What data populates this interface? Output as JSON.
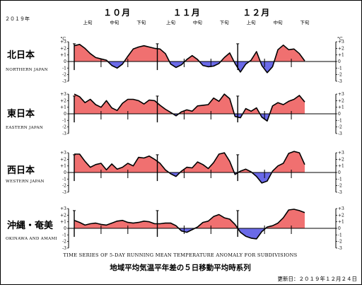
{
  "header": {
    "year": "２０１９年",
    "months": [
      "１０月",
      "１１月",
      "１２月"
    ],
    "dekads": [
      "上旬",
      "中旬",
      "下旬"
    ]
  },
  "footer": {
    "english_title": "TIME SERIES OF 5-DAY RUNNING MEAN TEMPERATURE ANOMALY FOR SUBDIVISIONS",
    "japanese_title": "地域平均気温平年差の５日移動平均時系列",
    "updated": "更新日：２０１９年１２月２４日"
  },
  "colors": {
    "positive": "#f07070",
    "negative": "#6a6ae8",
    "line": "#000000"
  },
  "chart_data": {
    "type": "area",
    "x_unit": "days since 2019-10-01",
    "xlim": [
      0,
      86
    ],
    "ylim": [
      -3,
      3
    ],
    "y_unit": "°C",
    "y_ticks": [
      "+3",
      "+2",
      "+1",
      "0",
      "-1",
      "-2",
      "-3"
    ],
    "month_boundaries": [
      0,
      31,
      61
    ],
    "dekad_starts": [
      0,
      10,
      20,
      31,
      41,
      51,
      61,
      71,
      81
    ],
    "series": [
      {
        "name_ja": "北日本",
        "name_en": "NORTHERN JAPAN",
        "x": [
          0,
          2,
          4,
          6,
          8,
          10,
          12,
          14,
          16,
          18,
          20,
          22,
          24,
          26,
          28,
          30,
          32,
          34,
          36,
          38,
          40,
          42,
          44,
          46,
          48,
          50,
          52,
          54,
          56,
          58,
          60,
          62,
          64,
          66,
          68,
          70,
          72,
          74,
          76,
          78,
          80,
          82,
          84,
          86
        ],
        "values": [
          2.4,
          2.6,
          2.0,
          1.2,
          0.6,
          0.4,
          0.2,
          -0.6,
          -1.0,
          -0.4,
          0.8,
          1.9,
          2.2,
          2.4,
          2.2,
          2.0,
          1.9,
          1.2,
          -0.4,
          -0.9,
          -0.5,
          0.3,
          0.9,
          0.3,
          -0.6,
          -0.8,
          -0.7,
          -0.3,
          0.6,
          1.3,
          -0.3,
          -1.6,
          -0.4,
          0.2,
          1.5,
          -0.6,
          -1.7,
          -0.8,
          1.8,
          2.5,
          1.8,
          1.9,
          1.2,
          0.1
        ]
      },
      {
        "name_ja": "東日本",
        "name_en": "EASTERN JAPAN",
        "x": [
          0,
          2,
          4,
          6,
          8,
          10,
          12,
          14,
          16,
          18,
          20,
          22,
          24,
          26,
          28,
          30,
          32,
          34,
          36,
          38,
          40,
          42,
          44,
          46,
          48,
          50,
          52,
          54,
          56,
          58,
          60,
          62,
          64,
          66,
          68,
          70,
          72,
          74,
          76,
          78,
          80,
          82,
          84,
          86
        ],
        "values": [
          3.0,
          2.6,
          1.7,
          2.2,
          1.4,
          1.0,
          2.0,
          0.9,
          0.5,
          1.6,
          2.2,
          2.2,
          2.0,
          1.5,
          2.1,
          2.0,
          1.3,
          0.7,
          0.2,
          -0.3,
          0.3,
          0.6,
          0.4,
          1.2,
          1.3,
          1.4,
          2.4,
          1.9,
          3.0,
          2.3,
          -0.4,
          -0.6,
          0.8,
          0.4,
          0.9,
          -0.5,
          -1.1,
          1.2,
          1.7,
          1.4,
          1.9,
          2.2,
          2.8,
          1.8
        ]
      },
      {
        "name_ja": "西日本",
        "name_en": "WESTERN JAPAN",
        "x": [
          0,
          2,
          4,
          6,
          8,
          10,
          12,
          14,
          16,
          18,
          20,
          22,
          24,
          26,
          28,
          30,
          32,
          34,
          36,
          38,
          40,
          42,
          44,
          46,
          48,
          50,
          52,
          54,
          56,
          58,
          60,
          62,
          64,
          66,
          68,
          70,
          72,
          74,
          76,
          78,
          80,
          82,
          84,
          86
        ],
        "values": [
          2.8,
          2.8,
          1.7,
          0.8,
          1.2,
          1.4,
          0.4,
          1.3,
          0.5,
          0.8,
          1.4,
          1.0,
          2.3,
          2.2,
          2.5,
          2.0,
          1.4,
          0.4,
          -0.2,
          -0.6,
          0.2,
          0.8,
          0.7,
          1.6,
          1.2,
          0.6,
          1.5,
          2.8,
          3.0,
          1.7,
          -0.3,
          0.2,
          0.5,
          0.1,
          -0.6,
          -1.6,
          -1.3,
          0.2,
          1.0,
          1.4,
          2.9,
          3.2,
          3.0,
          1.2
        ]
      },
      {
        "name_ja": "沖縄・奄美",
        "name_en": "OKINAWA AND AMAMI",
        "x": [
          0,
          2,
          4,
          6,
          8,
          10,
          12,
          14,
          16,
          18,
          20,
          22,
          24,
          26,
          28,
          30,
          32,
          34,
          36,
          38,
          40,
          42,
          44,
          46,
          48,
          50,
          52,
          54,
          56,
          58,
          60,
          62,
          64,
          66,
          68,
          70,
          72,
          74,
          76,
          78,
          80,
          82,
          84,
          86
        ],
        "values": [
          1.2,
          0.9,
          0.5,
          0.7,
          0.8,
          0.6,
          0.5,
          0.8,
          1.1,
          1.2,
          0.9,
          0.8,
          0.9,
          1.1,
          1.0,
          0.7,
          0.7,
          0.8,
          0.8,
          0.4,
          -0.4,
          -0.6,
          -0.2,
          0.2,
          0.9,
          1.1,
          1.8,
          2.1,
          1.6,
          1.4,
          0.6,
          -0.6,
          -1.2,
          -1.5,
          -1.6,
          -0.5,
          0.2,
          0.4,
          0.8,
          1.6,
          2.8,
          2.9,
          2.7,
          2.4
        ]
      }
    ]
  }
}
